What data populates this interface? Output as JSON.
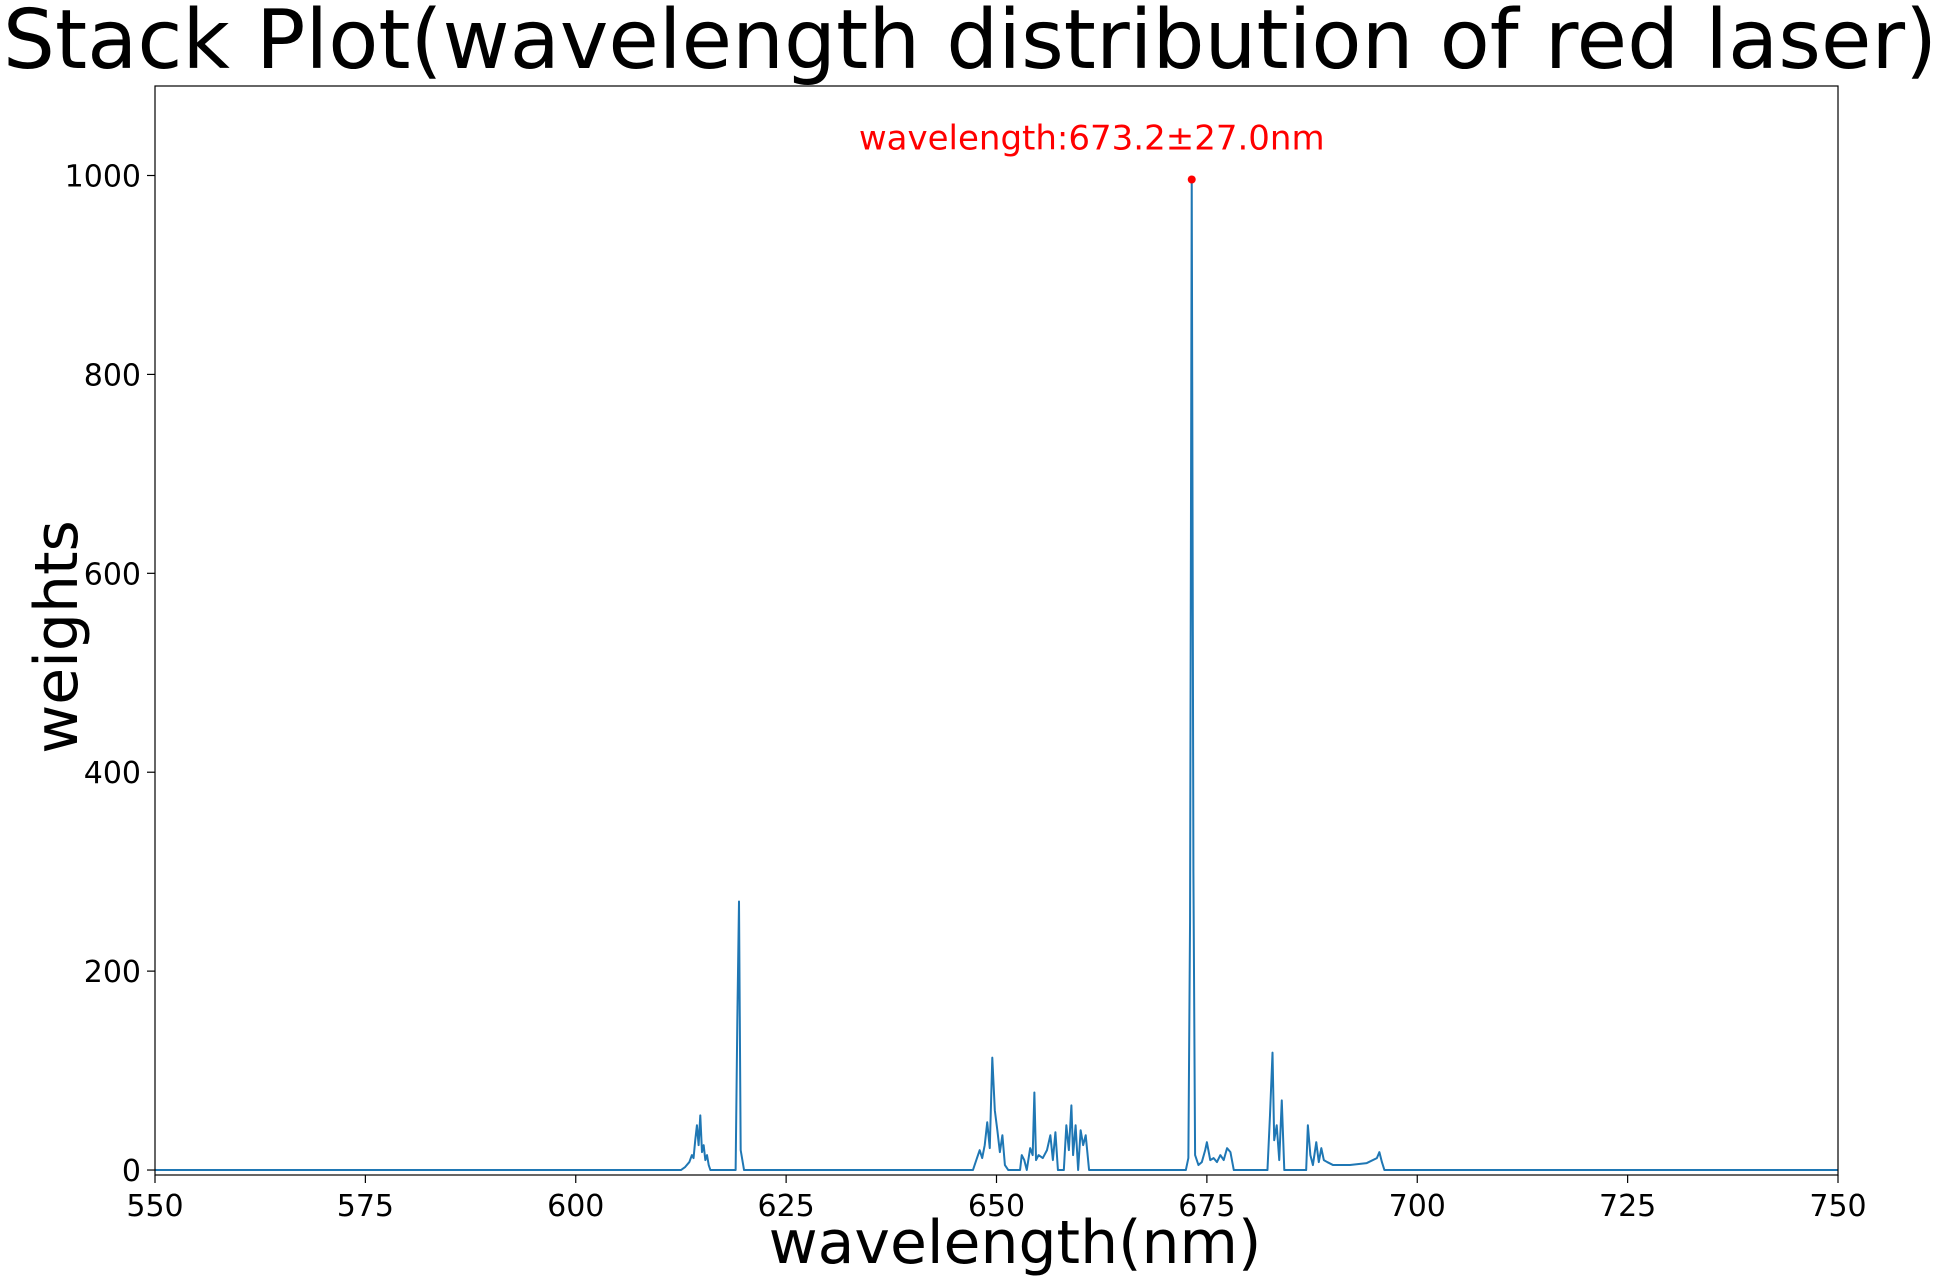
{
  "chart_data": {
    "type": "line",
    "title": "Stack Plot(wavelength distribution of red laser)",
    "xlabel": "wavelength(nm)",
    "ylabel": "weights",
    "xlim": [
      550,
      750
    ],
    "ylim": [
      -5,
      1090
    ],
    "xticks": [
      550,
      575,
      600,
      625,
      650,
      675,
      700,
      725,
      750
    ],
    "yticks": [
      0,
      200,
      400,
      600,
      800,
      1000
    ],
    "grid": false,
    "series_color": "#1f77b4",
    "annotation": {
      "text": "wavelength:673.2±27.0nm",
      "x": 673.2,
      "y": 996,
      "color": "#ff0000"
    },
    "series": [
      {
        "x": [
          550,
          612.5,
          613.0,
          613.5,
          613.8,
          614.0,
          614.2,
          614.4,
          614.6,
          614.8,
          615.0,
          615.2,
          615.4,
          615.6,
          615.8,
          616.0,
          619.0,
          619.2,
          619.4,
          619.6,
          620.0,
          647.2,
          647.6,
          648.0,
          648.3,
          648.6,
          648.9,
          649.2,
          649.5,
          649.8,
          650.1,
          650.4,
          650.7,
          651.0,
          651.4,
          652.8,
          653.0,
          653.3,
          653.6,
          654.0,
          654.3,
          654.5,
          654.7,
          655.0,
          655.5,
          656.0,
          656.4,
          656.7,
          657.0,
          657.3,
          658.0,
          658.3,
          658.6,
          658.9,
          659.1,
          659.4,
          659.7,
          660.0,
          660.3,
          660.6,
          661.0,
          672.5,
          672.8,
          673.0,
          673.2,
          673.4,
          673.6,
          674.0,
          674.4,
          674.8,
          675.0,
          675.4,
          675.8,
          676.2,
          676.6,
          677.0,
          677.4,
          677.8,
          678.2,
          682.2,
          682.5,
          682.8,
          683.0,
          683.3,
          683.6,
          683.9,
          684.2,
          686.8,
          687.0,
          687.3,
          687.6,
          688.0,
          688.3,
          688.6,
          688.9,
          689.3,
          690,
          692,
          694,
          695.2,
          695.5,
          695.8,
          696.1,
          750
        ],
        "y": [
          0,
          0,
          3,
          8,
          15,
          12,
          30,
          45,
          25,
          55,
          18,
          25,
          10,
          15,
          5,
          0,
          0,
          150,
          270,
          20,
          0,
          0,
          10,
          20,
          12,
          25,
          48,
          22,
          113,
          60,
          40,
          18,
          35,
          5,
          0,
          0,
          15,
          10,
          0,
          22,
          15,
          78,
          10,
          15,
          12,
          20,
          35,
          10,
          38,
          0,
          0,
          45,
          20,
          65,
          15,
          45,
          0,
          40,
          25,
          35,
          0,
          0,
          12,
          250,
          996,
          300,
          15,
          5,
          8,
          20,
          28,
          10,
          12,
          8,
          15,
          10,
          22,
          18,
          0,
          0,
          55,
          118,
          30,
          45,
          10,
          70,
          0,
          0,
          45,
          15,
          5,
          28,
          8,
          22,
          10,
          8,
          5,
          5,
          7,
          12,
          18,
          8,
          0,
          0
        ]
      }
    ]
  }
}
